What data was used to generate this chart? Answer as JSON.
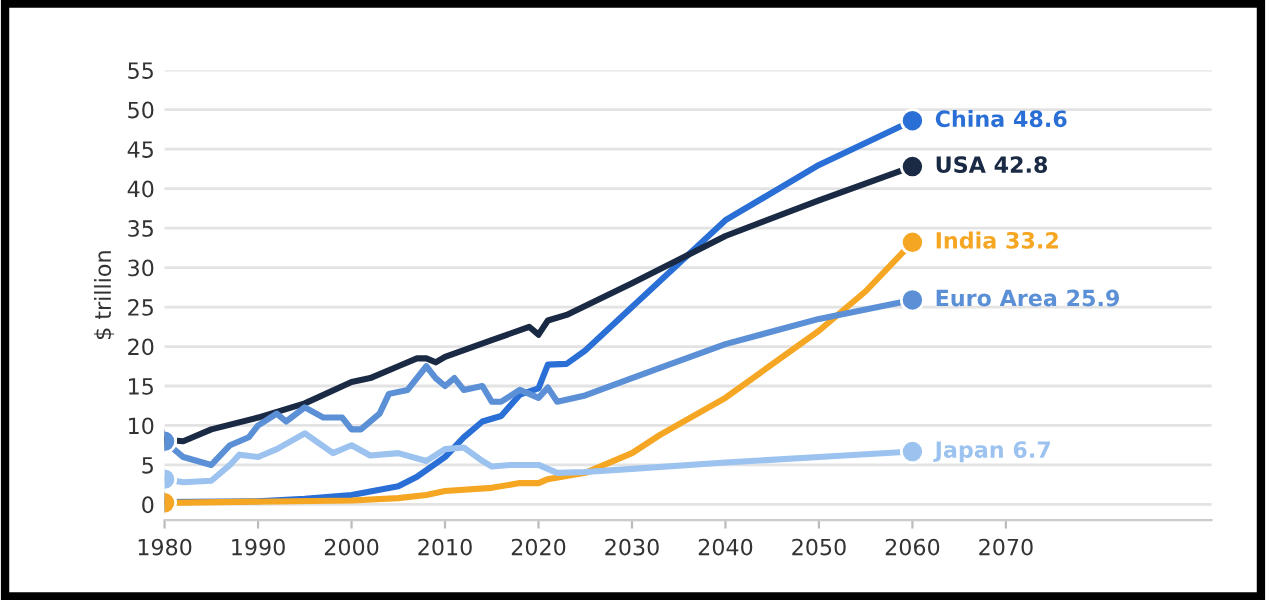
{
  "chart_data": {
    "type": "line",
    "ylabel": "$ trillion",
    "xlim": [
      1980,
      2092
    ],
    "ylim": [
      -2,
      55
    ],
    "xticks": [
      1980,
      1990,
      2000,
      2010,
      2020,
      2030,
      2040,
      2050,
      2060,
      2070
    ],
    "yticks": [
      0,
      5,
      10,
      15,
      20,
      25,
      30,
      35,
      40,
      45,
      50,
      55
    ],
    "grid": "y",
    "legend": false,
    "series": [
      {
        "name": "China",
        "color": "#2a6fd6",
        "value_labels": [
          null,
          null,
          null,
          null,
          null,
          null,
          null,
          null,
          null,
          null,
          null,
          null,
          null,
          null,
          null,
          null,
          null,
          null,
          "48.6"
        ],
        "x": [
          1980,
          1990,
          1995,
          2000,
          2005,
          2007,
          2010,
          2012,
          2014,
          2016,
          2018,
          2020,
          2021,
          2023,
          2025,
          2030,
          2040,
          2050,
          2060
        ],
        "values": [
          0.3,
          0.4,
          0.7,
          1.2,
          2.3,
          3.5,
          6,
          8.5,
          10.5,
          11.2,
          13.9,
          14.7,
          17.7,
          17.8,
          19.5,
          25,
          36,
          43,
          48.6
        ]
      },
      {
        "name": "USA",
        "color": "#1a2a44",
        "value_labels": [
          null,
          null,
          null,
          null,
          null,
          null,
          null,
          null,
          null,
          null,
          null,
          null,
          null,
          null,
          null,
          null,
          null,
          null,
          null,
          null,
          "42.8"
        ],
        "x": [
          1980,
          1982,
          1985,
          1990,
          1995,
          2000,
          2002,
          2005,
          2007,
          2008,
          2009,
          2010,
          2015,
          2019,
          2020,
          2021,
          2023,
          2030,
          2040,
          2050,
          2060
        ],
        "values": [
          8.2,
          8,
          9.5,
          11,
          12.8,
          15.5,
          16,
          17.5,
          18.5,
          18.5,
          18,
          18.7,
          20.8,
          22.5,
          21.5,
          23.3,
          24,
          28,
          34,
          38.5,
          42.8
        ]
      },
      {
        "name": "India",
        "color": "#f5a623",
        "value_labels": [
          null,
          null,
          null,
          null,
          null,
          null,
          null,
          null,
          null,
          null,
          null,
          null,
          null,
          null,
          null,
          "33.2"
        ],
        "x": [
          1980,
          2000,
          2005,
          2008,
          2010,
          2015,
          2018,
          2020,
          2021,
          2025,
          2030,
          2033,
          2040,
          2050,
          2055,
          2060
        ],
        "values": [
          0.2,
          0.5,
          0.8,
          1.2,
          1.7,
          2.1,
          2.7,
          2.7,
          3.2,
          4,
          6.5,
          8.8,
          13.5,
          22,
          27,
          33.2
        ]
      },
      {
        "name": "Euro Area",
        "color": "#5b8fd6",
        "value_labels": [
          null,
          null,
          null,
          null,
          null,
          null,
          null,
          null,
          null,
          null,
          null,
          null,
          null,
          null,
          null,
          null,
          null,
          null,
          null,
          null,
          null,
          null,
          null,
          null,
          null,
          null,
          null,
          null,
          null,
          null,
          null,
          null,
          null,
          "25.9"
        ],
        "x": [
          1980,
          1982,
          1985,
          1987,
          1989,
          1990,
          1992,
          1993,
          1995,
          1997,
          1999,
          2000,
          2001,
          2003,
          2004,
          2006,
          2008,
          2009,
          2010,
          2011,
          2012,
          2014,
          2015,
          2016,
          2018,
          2020,
          2021,
          2022,
          2025,
          2030,
          2033,
          2040,
          2050,
          2060
        ],
        "values": [
          8,
          6,
          5,
          7.5,
          8.5,
          10,
          11.5,
          10.5,
          12.3,
          11,
          11,
          9.5,
          9.5,
          11.5,
          14,
          14.5,
          17.5,
          16,
          15,
          16,
          14.5,
          15,
          13,
          13,
          14.5,
          13.5,
          14.8,
          13,
          13.8,
          16,
          17.3,
          20.3,
          23.5,
          25.9
        ]
      },
      {
        "name": "Japan",
        "color": "#9cc3ef",
        "value_labels": [
          null,
          null,
          null,
          null,
          null,
          null,
          null,
          null,
          null,
          null,
          null,
          null,
          null,
          null,
          null,
          null,
          null,
          null,
          null,
          null,
          null,
          null,
          null,
          null,
          "6.7"
        ],
        "x": [
          1980,
          1982,
          1985,
          1987,
          1988,
          1990,
          1992,
          1995,
          1998,
          2000,
          2002,
          2005,
          2008,
          2010,
          2012,
          2014,
          2015,
          2017,
          2020,
          2022,
          2025,
          2030,
          2040,
          2050,
          2060
        ],
        "values": [
          3.2,
          2.8,
          3,
          5,
          6.3,
          6,
          7,
          9,
          6.5,
          7.5,
          6.2,
          6.5,
          5.5,
          7,
          7.2,
          5.5,
          4.8,
          5,
          5,
          4,
          4.1,
          4.5,
          5.3,
          6,
          6.7
        ]
      }
    ]
  }
}
